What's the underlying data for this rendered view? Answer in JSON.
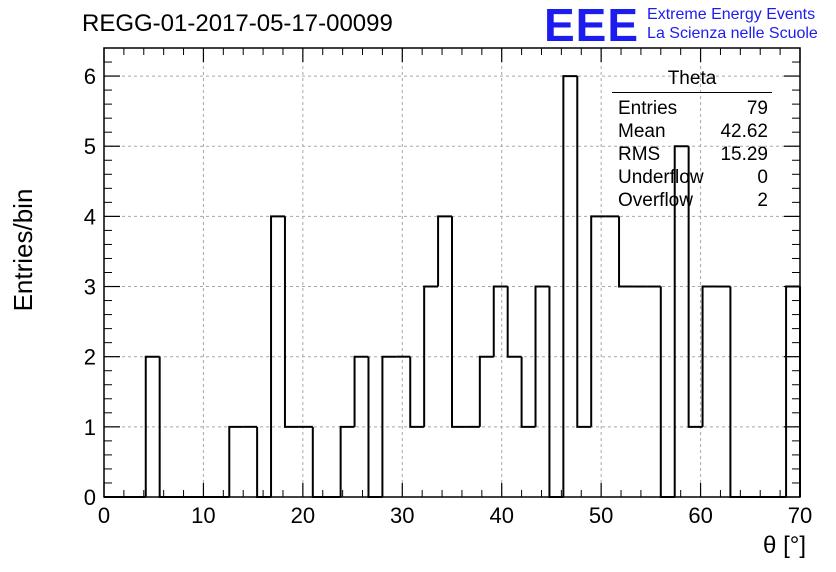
{
  "chart_data": {
    "type": "histogram",
    "title": "REGG-01-2017-05-17-00099",
    "xlabel": "θ [°]",
    "ylabel": "Entries/bin",
    "xlim": [
      0,
      70
    ],
    "ylim": [
      0,
      6.4
    ],
    "x_ticks": [
      "0",
      "10",
      "20",
      "30",
      "40",
      "50",
      "60",
      "70"
    ],
    "y_ticks": [
      "0",
      "1",
      "2",
      "3",
      "4",
      "5",
      "6"
    ],
    "grid": true,
    "bin_width": 1.4,
    "bin_start": 0,
    "values": [
      0,
      0,
      0,
      2,
      0,
      0,
      0,
      0,
      0,
      1,
      1,
      0,
      4,
      1,
      1,
      0,
      0,
      1,
      2,
      0,
      2,
      2,
      1,
      3,
      4,
      1,
      1,
      2,
      3,
      2,
      1,
      3,
      0,
      6,
      1,
      4,
      4,
      3,
      3,
      3,
      0,
      5,
      1,
      3,
      3,
      0,
      0,
      0,
      0,
      3
    ],
    "stats_box": {
      "title": "Theta",
      "entries": [
        {
          "label": "Entries",
          "value": "79"
        },
        {
          "label": "Mean",
          "value": "42.62"
        },
        {
          "label": "RMS",
          "value": "15.29"
        },
        {
          "label": "Underflow",
          "value": "0"
        },
        {
          "label": "Overflow",
          "value": "2"
        }
      ]
    }
  },
  "logo": {
    "mark": "EEE",
    "line1": "Extreme Energy Events",
    "line2": "La Scienza nelle Scuole",
    "color": "#1c1cf0"
  }
}
